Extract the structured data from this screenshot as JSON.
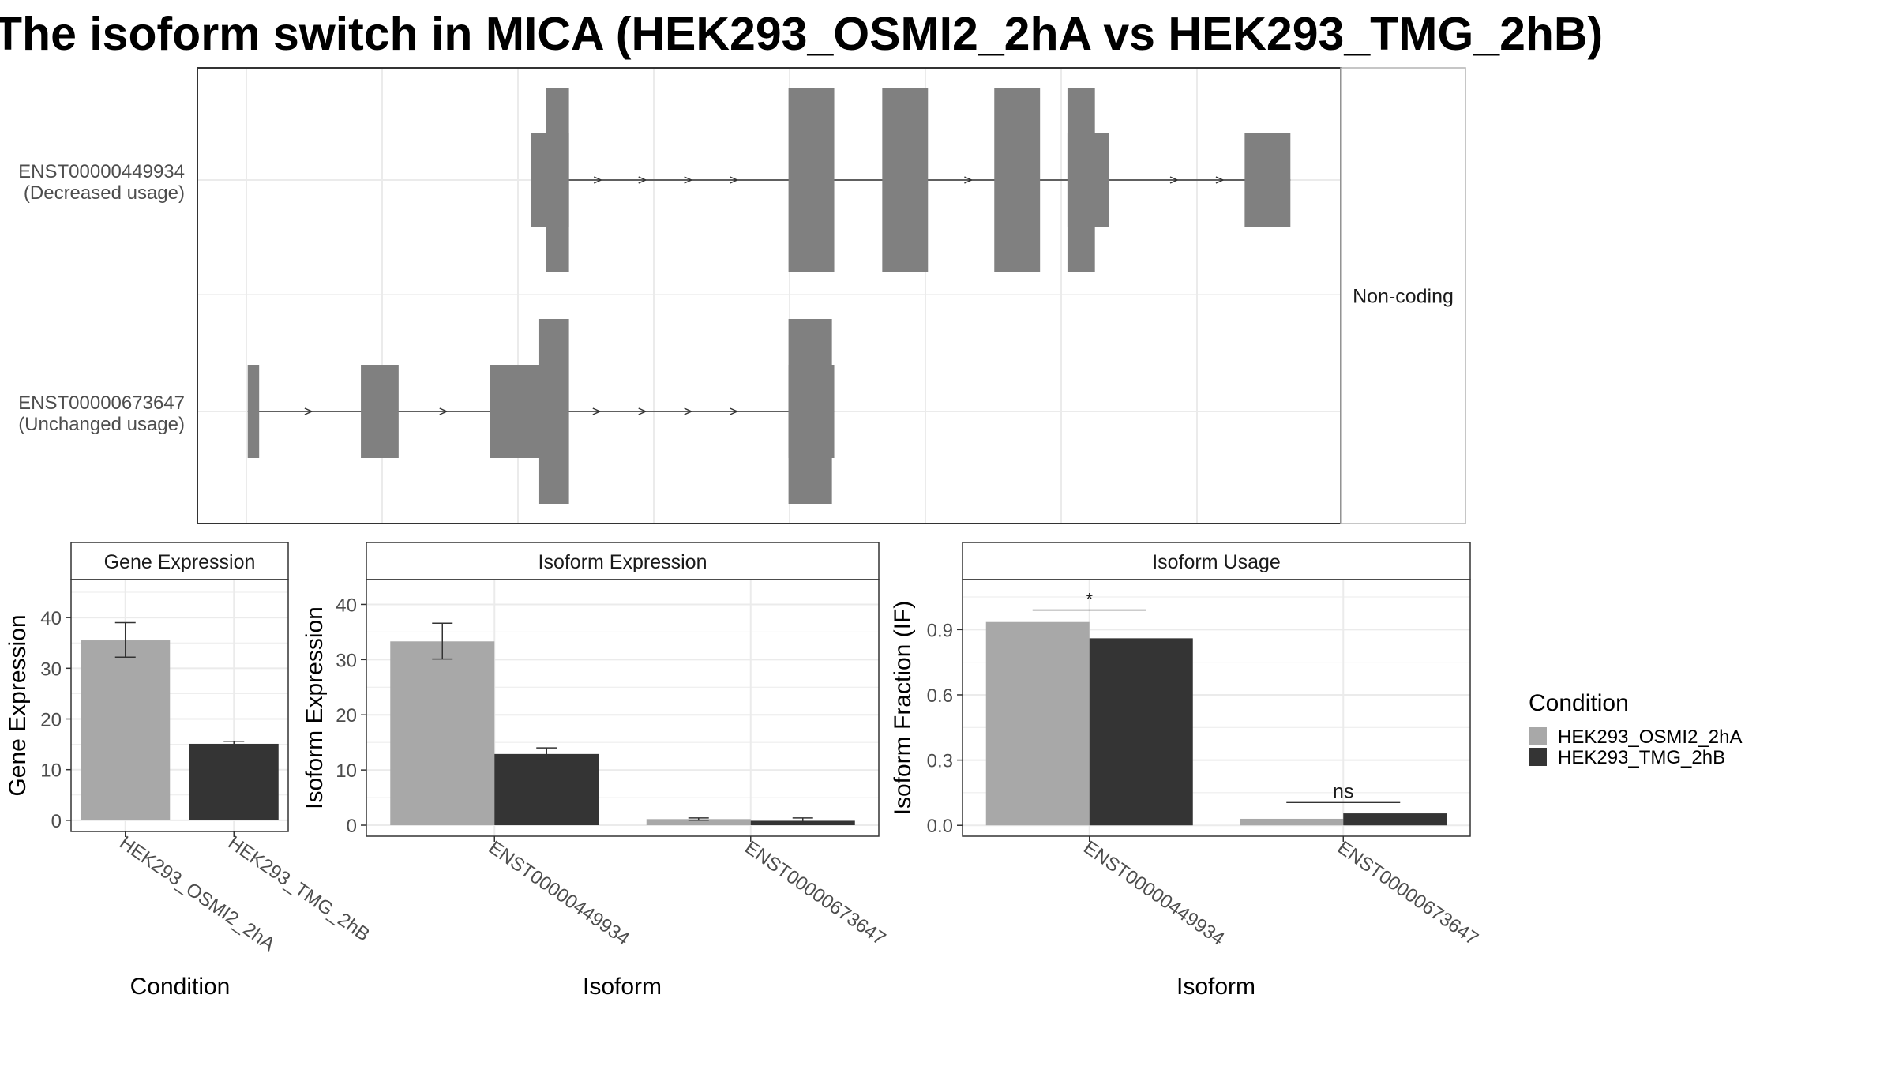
{
  "title": "The isoform switch in MICA (HEK293_OSMI2_2hA vs HEK293_TMG_2hB)",
  "colors": {
    "exon": "#808080",
    "cond1": "#a8a8a8",
    "cond2": "#343434",
    "grid": "#ebebeb",
    "border": "#333333"
  },
  "structure": {
    "facet_label": "Non-coding",
    "transcripts": [
      {
        "id": "ENST00000449934",
        "usage": "(Decreased usage)",
        "arrow_centers": [
          0.351,
          0.39,
          0.43,
          0.47,
          0.675,
          0.715,
          0.855,
          0.895
        ],
        "exons": [
          {
            "start": 0.292,
            "end": 0.325,
            "type": "thin"
          },
          {
            "start": 0.305,
            "end": 0.325,
            "type": "thick"
          },
          {
            "start": 0.517,
            "end": 0.557,
            "type": "thick"
          },
          {
            "start": 0.599,
            "end": 0.639,
            "type": "thick"
          },
          {
            "start": 0.697,
            "end": 0.737,
            "type": "thick"
          },
          {
            "start": 0.761,
            "end": 0.785,
            "type": "thick"
          },
          {
            "start": 0.761,
            "end": 0.797,
            "type": "thin"
          },
          {
            "start": 0.916,
            "end": 0.956,
            "type": "thin"
          }
        ]
      },
      {
        "id": "ENST00000673647",
        "usage": "(Unchanged usage)",
        "arrow_centers": [
          0.098,
          0.216,
          0.35,
          0.39,
          0.43,
          0.47
        ],
        "exons": [
          {
            "start": 0.044,
            "end": 0.054,
            "type": "thin"
          },
          {
            "start": 0.143,
            "end": 0.176,
            "type": "thin"
          },
          {
            "start": 0.256,
            "end": 0.305,
            "type": "thin"
          },
          {
            "start": 0.299,
            "end": 0.325,
            "type": "thick"
          },
          {
            "start": 0.517,
            "end": 0.555,
            "type": "thick"
          },
          {
            "start": 0.517,
            "end": 0.557,
            "type": "thin"
          }
        ]
      }
    ]
  },
  "legend": {
    "title": "Condition",
    "items": [
      "HEK293_OSMI2_2hA",
      "HEK293_TMG_2hB"
    ]
  },
  "chart_data": [
    {
      "type": "bar",
      "title": "Gene Expression",
      "xlabel": "Condition",
      "ylabel": "Gene Expression",
      "categories": [
        "HEK293_OSMI2_2hA",
        "HEK293_TMG_2hB"
      ],
      "series": [
        {
          "name": "HEK293_OSMI2_2hA",
          "values": [
            35.5,
            null
          ],
          "err_low": [
            32.2,
            null
          ],
          "err_high": [
            39.0,
            null
          ]
        },
        {
          "name": "HEK293_TMG_2hB",
          "values": [
            null,
            15.1
          ],
          "err_low": [
            null,
            14.6
          ],
          "err_high": [
            null,
            15.6
          ]
        }
      ],
      "yticks": [
        0,
        10,
        20,
        30,
        40
      ],
      "ylim": [
        -2.2,
        47.5
      ]
    },
    {
      "type": "bar",
      "title": "Isoform Expression",
      "xlabel": "Isoform",
      "ylabel": "Isoform Expression",
      "categories": [
        "ENST00000449934",
        "ENST00000673647"
      ],
      "series": [
        {
          "name": "HEK293_OSMI2_2hA",
          "values": [
            33.3,
            1.1
          ],
          "err_low": [
            30.1,
            0.9
          ],
          "err_high": [
            36.6,
            1.3
          ]
        },
        {
          "name": "HEK293_TMG_2hB",
          "values": [
            12.9,
            0.8
          ],
          "err_low": [
            12.0,
            0.5
          ],
          "err_high": [
            14.0,
            1.3
          ]
        }
      ],
      "yticks": [
        0,
        10,
        20,
        30,
        40
      ],
      "ylim": [
        -2.0,
        44.5
      ]
    },
    {
      "type": "bar",
      "title": "Isoform Usage",
      "xlabel": "Isoform",
      "ylabel": "Isoform Fraction (IF)",
      "categories": [
        "ENST00000449934",
        "ENST00000673647"
      ],
      "series": [
        {
          "name": "HEK293_OSMI2_2hA",
          "values": [
            0.935,
            0.03
          ]
        },
        {
          "name": "HEK293_TMG_2hB",
          "values": [
            0.86,
            0.055
          ]
        }
      ],
      "yticks": [
        0.0,
        0.3,
        0.6,
        0.9
      ],
      "ytick_labels": [
        "0.0",
        "0.3",
        "0.6",
        "0.9"
      ],
      "ylim": [
        -0.05,
        1.13
      ],
      "significance": [
        {
          "category": "ENST00000449934",
          "label": "*",
          "y": 0.99
        },
        {
          "category": "ENST00000673647",
          "label": "ns",
          "y": 0.105
        }
      ]
    }
  ]
}
